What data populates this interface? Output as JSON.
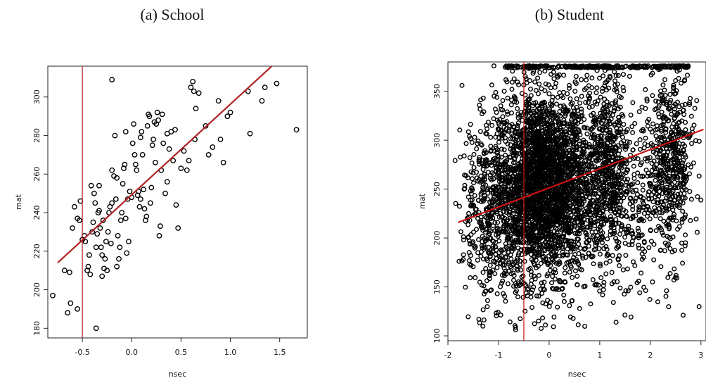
{
  "chart_data": [
    {
      "type": "scatter",
      "panel_title": "(a) School",
      "xlabel": "nsec",
      "ylabel": "mat",
      "xlim": [
        -0.85,
        1.78
      ],
      "ylim": [
        175,
        316
      ],
      "xticks": [
        "-0.5",
        "0.0",
        "0.5",
        "1.0",
        "1.5"
      ],
      "xtick_values": [
        -0.5,
        0.0,
        0.5,
        1.0,
        1.5
      ],
      "yticks": [
        "180",
        "200",
        "220",
        "240",
        "260",
        "280",
        "300"
      ],
      "ytick_values": [
        180,
        200,
        220,
        240,
        260,
        280,
        300
      ],
      "vline_x": -0.5,
      "fit_line": [
        [
          -0.75,
          214
        ],
        [
          1.42,
          316
        ]
      ],
      "point_color": "#000000",
      "line_color": "#b22222",
      "points": [
        [
          -0.8,
          197
        ],
        [
          -0.68,
          210
        ],
        [
          -0.65,
          188
        ],
        [
          -0.63,
          209
        ],
        [
          -0.62,
          193
        ],
        [
          -0.6,
          232
        ],
        [
          -0.58,
          243
        ],
        [
          -0.55,
          190
        ],
        [
          -0.53,
          236
        ],
        [
          -0.52,
          246
        ],
        [
          -0.5,
          226
        ],
        [
          -0.48,
          228
        ],
        [
          -0.47,
          225
        ],
        [
          -0.45,
          210
        ],
        [
          -0.44,
          212
        ],
        [
          -0.43,
          218
        ],
        [
          -0.42,
          208
        ],
        [
          -0.4,
          230
        ],
        [
          -0.39,
          235
        ],
        [
          -0.38,
          250
        ],
        [
          -0.37,
          245
        ],
        [
          -0.36,
          180
        ],
        [
          -0.36,
          222
        ],
        [
          -0.35,
          229
        ],
        [
          -0.34,
          240
        ],
        [
          -0.33,
          241
        ],
        [
          -0.32,
          232
        ],
        [
          -0.31,
          222
        ],
        [
          -0.3,
          218
        ],
        [
          -0.3,
          207
        ],
        [
          -0.28,
          211
        ],
        [
          -0.27,
          216
        ],
        [
          -0.26,
          225
        ],
        [
          -0.25,
          210
        ],
        [
          -0.24,
          230
        ],
        [
          -0.23,
          240
        ],
        [
          -0.22,
          243
        ],
        [
          -0.2,
          245
        ],
        [
          -0.2,
          262
        ],
        [
          -0.2,
          309
        ],
        [
          -0.18,
          259
        ],
        [
          -0.17,
          280
        ],
        [
          -0.16,
          247
        ],
        [
          -0.15,
          212
        ],
        [
          -0.14,
          228
        ],
        [
          -0.13,
          216
        ],
        [
          -0.12,
          222
        ],
        [
          -0.11,
          236
        ],
        [
          -0.1,
          240
        ],
        [
          -0.09,
          255
        ],
        [
          -0.08,
          263
        ],
        [
          -0.07,
          265
        ],
        [
          -0.06,
          282
        ],
        [
          -0.05,
          219
        ],
        [
          -0.04,
          247
        ],
        [
          -0.03,
          225
        ],
        [
          -0.02,
          251
        ],
        [
          0.0,
          248
        ],
        [
          0.01,
          276
        ],
        [
          0.02,
          286
        ],
        [
          0.03,
          270
        ],
        [
          0.04,
          265
        ],
        [
          0.05,
          262
        ],
        [
          0.06,
          249
        ],
        [
          0.07,
          251
        ],
        [
          0.08,
          243
        ],
        [
          0.09,
          279
        ],
        [
          0.1,
          282
        ],
        [
          0.11,
          270
        ],
        [
          0.12,
          252
        ],
        [
          0.13,
          242
        ],
        [
          0.14,
          236
        ],
        [
          0.15,
          238
        ],
        [
          0.16,
          285
        ],
        [
          0.17,
          291
        ],
        [
          0.18,
          290
        ],
        [
          0.19,
          245
        ],
        [
          0.2,
          253
        ],
        [
          0.21,
          275
        ],
        [
          0.22,
          278
        ],
        [
          0.23,
          287
        ],
        [
          0.24,
          266
        ],
        [
          0.25,
          286
        ],
        [
          0.26,
          292
        ],
        [
          0.27,
          288
        ],
        [
          0.28,
          228
        ],
        [
          0.29,
          233
        ],
        [
          0.3,
          262
        ],
        [
          0.31,
          291
        ],
        [
          0.32,
          276
        ],
        [
          0.34,
          250
        ],
        [
          0.36,
          281
        ],
        [
          0.38,
          273
        ],
        [
          0.4,
          282
        ],
        [
          0.42,
          267
        ],
        [
          0.44,
          283
        ],
        [
          0.45,
          244
        ],
        [
          0.47,
          232
        ],
        [
          0.5,
          263
        ],
        [
          0.53,
          272
        ],
        [
          0.56,
          262
        ],
        [
          0.6,
          305
        ],
        [
          0.62,
          308
        ],
        [
          0.63,
          303
        ],
        [
          0.64,
          278
        ],
        [
          0.65,
          294
        ],
        [
          0.68,
          302
        ],
        [
          0.75,
          285
        ],
        [
          0.78,
          270
        ],
        [
          0.82,
          274
        ],
        [
          0.88,
          298
        ],
        [
          0.9,
          278
        ],
        [
          0.93,
          266
        ],
        [
          0.97,
          290
        ],
        [
          1.0,
          292
        ],
        [
          1.18,
          303
        ],
        [
          1.2,
          281
        ],
        [
          1.32,
          298
        ],
        [
          1.35,
          305
        ],
        [
          1.47,
          307
        ],
        [
          1.67,
          283
        ],
        [
          -0.55,
          237
        ],
        [
          -0.41,
          254
        ],
        [
          -0.29,
          236
        ],
        [
          -0.21,
          224
        ],
        [
          -0.06,
          237
        ],
        [
          0.09,
          247
        ],
        [
          0.36,
          256
        ],
        [
          0.58,
          267
        ],
        [
          -0.33,
          254
        ],
        [
          -0.15,
          258
        ]
      ]
    },
    {
      "type": "scatter",
      "panel_title": "(b) Student",
      "xlabel": "nsec",
      "ylabel": "mat",
      "xlim": [
        -2.0,
        3.1
      ],
      "ylim": [
        95,
        380
      ],
      "xticks": [
        "-2",
        "-1",
        "0",
        "1",
        "2",
        "3"
      ],
      "xtick_values": [
        -2,
        -1,
        0,
        1,
        2,
        3
      ],
      "yticks": [
        "100",
        "150",
        "200",
        "250",
        "300",
        "350"
      ],
      "ytick_values": [
        100,
        150,
        200,
        250,
        300,
        350
      ],
      "vline_x": -0.5,
      "fit_line": [
        [
          -1.8,
          216
        ],
        [
          3.05,
          311
        ]
      ],
      "point_color": "#000000",
      "line_color": "#cc1111",
      "ceiling_value": 376,
      "density_clusters": [
        {
          "x_center": -0.2,
          "x_sd": 0.45,
          "y_center": 255,
          "y_sd": 48,
          "n": 2600
        },
        {
          "x_center": 1.2,
          "x_sd": 0.2,
          "y_center": 270,
          "y_sd": 50,
          "n": 500
        },
        {
          "x_center": 2.4,
          "x_sd": 0.22,
          "y_center": 275,
          "y_sd": 48,
          "n": 500
        },
        {
          "x_center": -1.2,
          "x_sd": 0.3,
          "y_center": 225,
          "y_sd": 45,
          "n": 350
        },
        {
          "x_center": 0.6,
          "x_sd": 0.35,
          "y_center": 250,
          "y_sd": 55,
          "n": 450
        },
        {
          "x_center": 1.8,
          "x_sd": 0.3,
          "y_center": 240,
          "y_sd": 55,
          "n": 200
        }
      ]
    }
  ]
}
